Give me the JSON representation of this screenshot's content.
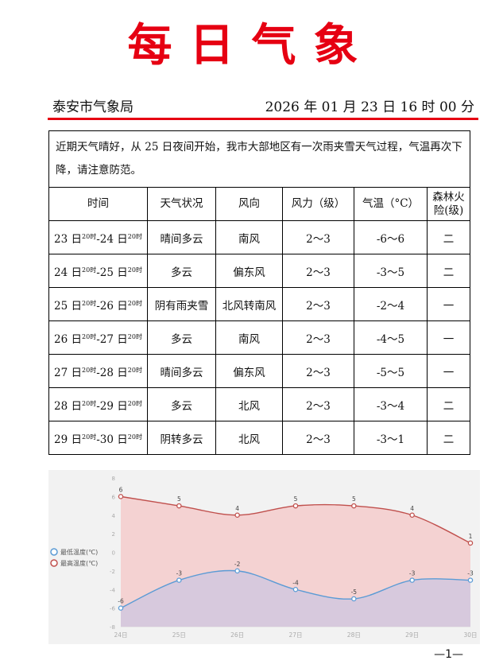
{
  "header": {
    "title": "每日气象",
    "org": "泰安市气象局",
    "datetime": "2026 年 01 月 23 日 16 时 00 分"
  },
  "summary": "近期天气晴好，从 25 日夜间开始，我市大部地区有一次雨夹雪天气过程，气温再次下降，请注意防范。",
  "table": {
    "headers": [
      "时间",
      "天气状况",
      "风向",
      "风力（级）",
      "气温（°C）",
      "森林火险(级)"
    ],
    "rows": [
      {
        "d1": "23 日",
        "d2": "24 日",
        "weather": "晴间多云",
        "wind_dir": "南风",
        "wind_force": "2～3",
        "temp": "-6～6",
        "fire": "二"
      },
      {
        "d1": "24 日",
        "d2": "25 日",
        "weather": "多云",
        "wind_dir": "偏东风",
        "wind_force": "2～3",
        "temp": "-3～5",
        "fire": "二"
      },
      {
        "d1": "25 日",
        "d2": "26 日",
        "weather": "阴有雨夹雪",
        "wind_dir": "北风转南风",
        "wind_force": "2～3",
        "temp": "-2～4",
        "fire": "一"
      },
      {
        "d1": "26 日",
        "d2": "27 日",
        "weather": "多云",
        "wind_dir": "南风",
        "wind_force": "2～3",
        "temp": "-4～5",
        "fire": "一"
      },
      {
        "d1": "27 日",
        "d2": "28 日",
        "weather": "晴间多云",
        "wind_dir": "偏东风",
        "wind_force": "2～3",
        "temp": "-5～5",
        "fire": "一"
      },
      {
        "d1": "28 日",
        "d2": "29 日",
        "weather": "多云",
        "wind_dir": "北风",
        "wind_force": "2～3",
        "temp": "-3～4",
        "fire": "二"
      },
      {
        "d1": "29 日",
        "d2": "30 日",
        "weather": "阴转多云",
        "wind_dir": "北风",
        "wind_force": "2～3",
        "temp": "-3～1",
        "fire": "二"
      }
    ],
    "time_sup": "20时"
  },
  "chart_data": {
    "type": "area",
    "categories": [
      "24日",
      "25日",
      "26日",
      "27日",
      "28日",
      "29日",
      "30日"
    ],
    "series": [
      {
        "name": "最低温度(℃)",
        "values": [
          -6,
          -3,
          -2,
          -4,
          -5,
          -3,
          -3
        ],
        "color": "#5b9bd5",
        "fill": "#cdc5e0"
      },
      {
        "name": "最高温度(℃)",
        "values": [
          6,
          5,
          4,
          5,
          5,
          4,
          1
        ],
        "color": "#c0504d",
        "fill": "#f5cccc"
      }
    ],
    "ylim": [
      -8,
      8
    ],
    "yticks": [
      -8,
      -6,
      -4,
      -2,
      0,
      2,
      4,
      6,
      8
    ],
    "legend": "left",
    "grid": false
  },
  "page_number": "—1—"
}
